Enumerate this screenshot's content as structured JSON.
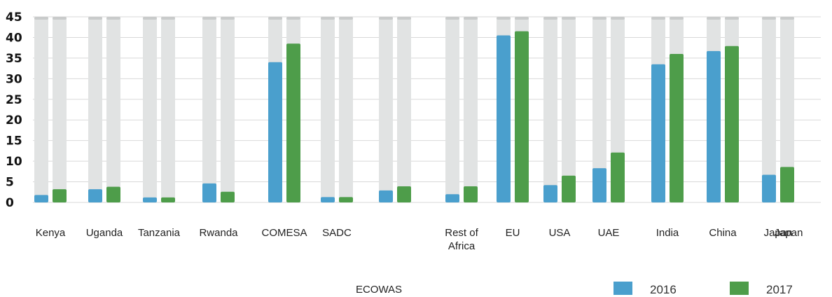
{
  "chart_data": {
    "type": "bar",
    "ylim": [
      0,
      45
    ],
    "yticks": [
      "0",
      "5",
      "10",
      "15",
      "20",
      "25",
      "30",
      "35",
      "40",
      "45"
    ],
    "grid": true,
    "legend_position": "bottom-right",
    "categories": [
      "Kenya",
      "Uganda",
      "Tanzania",
      "Rwanda",
      "COMESA",
      "SADC",
      "",
      "Rest of Africa",
      "EU",
      "USA",
      "UAE",
      "India",
      "China",
      "Japan"
    ],
    "category_lines": [
      [
        "Kenya"
      ],
      [
        "Uganda"
      ],
      [
        "Tanzania"
      ],
      [
        "Rwanda"
      ],
      [
        "COMESA"
      ],
      [
        "SADC"
      ],
      [],
      [
        "Rest of",
        "Africa"
      ],
      [
        "EU"
      ],
      [
        "USA"
      ],
      [
        "UAE"
      ],
      [
        "India"
      ],
      [
        "China"
      ],
      [
        "Japan"
      ]
    ],
    "extra_labels": [
      "Japan",
      "ECOWAS"
    ],
    "series": [
      {
        "name": "2016",
        "color": "#4a9fcd",
        "values": [
          1.8,
          3.2,
          1.2,
          4.6,
          34,
          1.3,
          2.9,
          2.0,
          40.5,
          4.2,
          8.3,
          33.5,
          36.7,
          6.7
        ]
      },
      {
        "name": "2017",
        "color": "#4e9d4a",
        "values": [
          3.2,
          3.8,
          1.2,
          2.6,
          38.5,
          1.3,
          3.9,
          3.9,
          41.5,
          6.5,
          12.1,
          36.0,
          37.9,
          8.6
        ]
      }
    ],
    "background_bar_color": "#e1e3e3"
  }
}
